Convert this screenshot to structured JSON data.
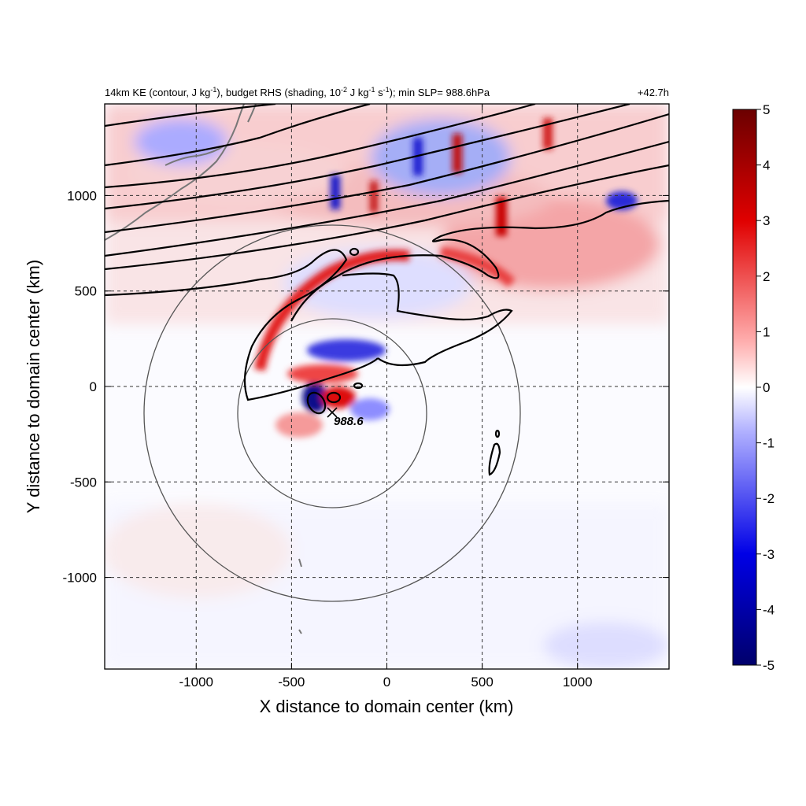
{
  "chart_data": {
    "type": "heatmap",
    "title_left_parts": {
      "a": "14km KE (contour, J kg",
      "a_sup": "-1",
      "b": "), budget RHS (shading, 10",
      "b_sup": "-2",
      "c": " J kg",
      "c_sup": "-1",
      "d": " s",
      "d_sup": "-1",
      "e": "); min SLP= 988.6hPa"
    },
    "title_right": "+42.7h",
    "xlabel": "X distance to domain center (km)",
    "ylabel": "Y distance to domain center (km)",
    "xlim": [
      -1480,
      1480
    ],
    "ylim": [
      -1480,
      1480
    ],
    "xticks": [
      -1000,
      -500,
      0,
      500,
      1000
    ],
    "yticks": [
      1000,
      500,
      0,
      -500,
      -1000
    ],
    "grid": "dashed at ticks",
    "colorbar": {
      "ticks": [
        5,
        4,
        3,
        2,
        1,
        0,
        -1,
        -2,
        -3,
        -4,
        -5
      ],
      "range": [
        -5,
        5
      ],
      "colormap": "blue-white-red"
    },
    "center_marker": {
      "x": -290,
      "y": -130,
      "label": "988.6"
    },
    "range_circles_km": [
      500,
      1000
    ]
  }
}
